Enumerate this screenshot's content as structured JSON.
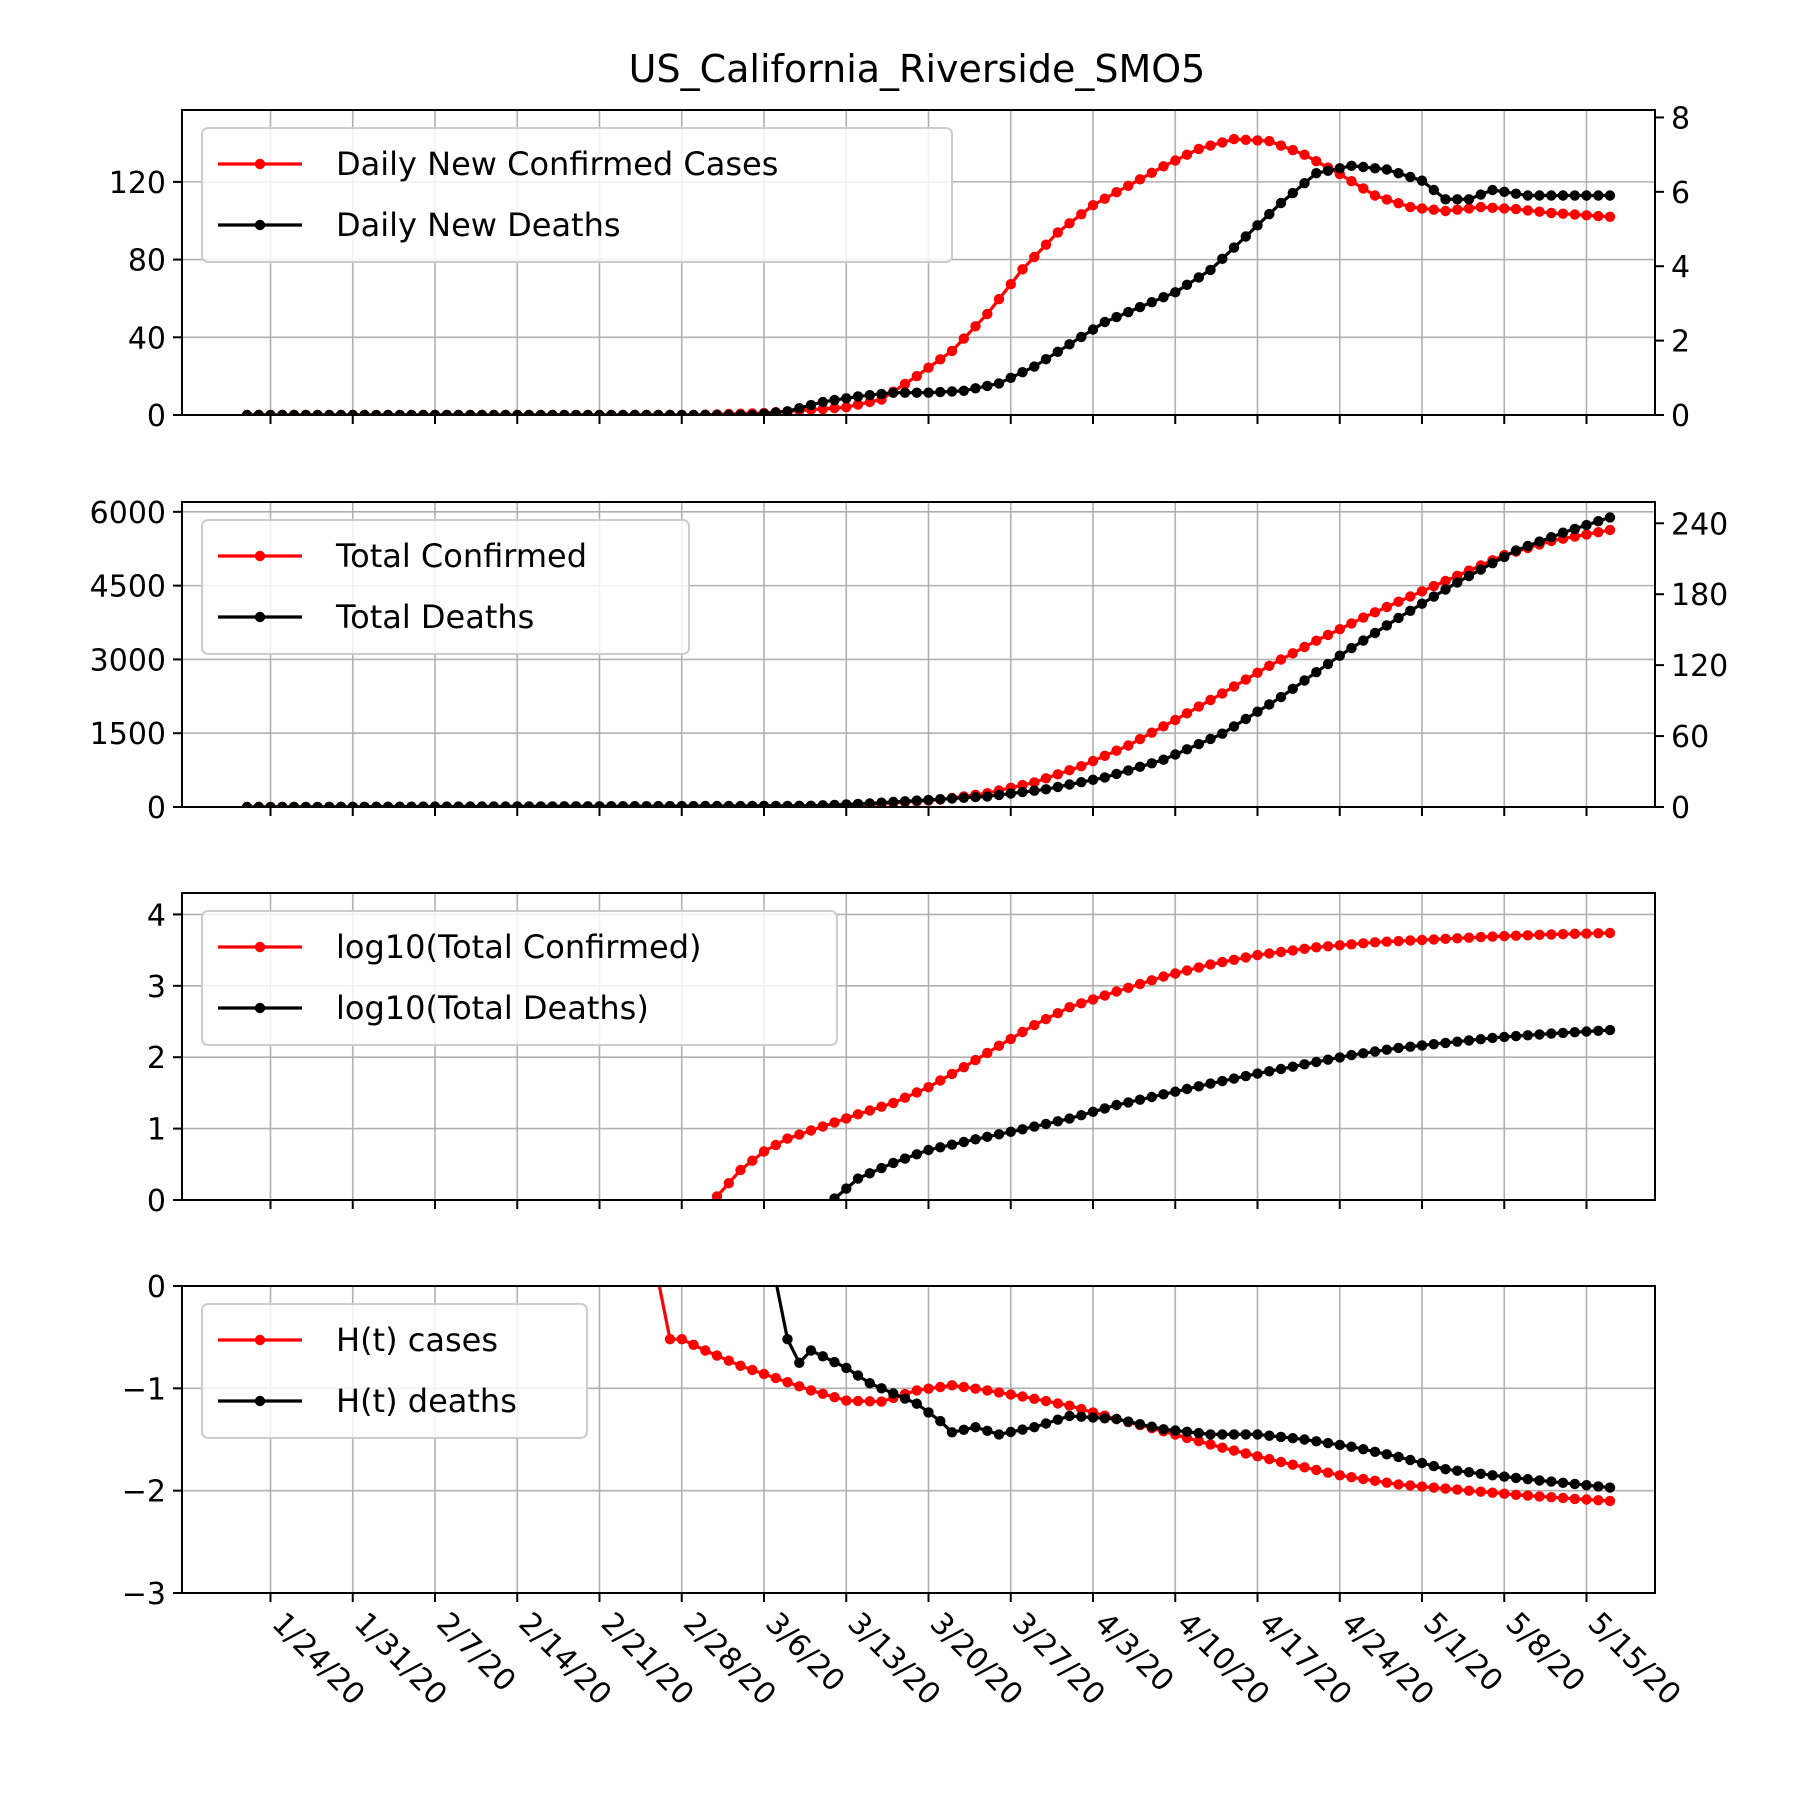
{
  "title": "US_California_Riverside_SMO5",
  "colors": {
    "cases": "#ff0000",
    "deaths": "#000000"
  },
  "chart_data": {
    "type": "line",
    "x_tick_labels": [
      "1/24/20",
      "1/31/20",
      "2/7/20",
      "2/14/20",
      "2/21/20",
      "2/28/20",
      "3/6/20",
      "3/13/20",
      "3/20/20",
      "3/27/20",
      "4/3/20",
      "4/10/20",
      "4/17/20",
      "4/24/20",
      "5/1/20",
      "5/8/20",
      "5/15/20"
    ],
    "date_range": [
      "1/22/20",
      "5/17/20"
    ],
    "grid": true,
    "legend_placement": "upper-left",
    "panels": [
      {
        "name": "daily",
        "ylim_left": [
          0,
          157
        ],
        "ylim_right": [
          0,
          8.2
        ],
        "yticks_left": [
          0,
          40,
          80,
          120
        ],
        "yticks_right": [
          0,
          2,
          4,
          6,
          8
        ],
        "series": [
          {
            "name": "Daily New Confirmed Cases",
            "color": "#ff0000",
            "axis": "left",
            "points": [
              [
                "1/22/20",
                0
              ],
              [
                "2/29/20",
                0
              ],
              [
                "3/6/20",
                1
              ],
              [
                "3/13/20",
                4
              ],
              [
                "3/16/20",
                8
              ],
              [
                "3/19/20",
                20
              ],
              [
                "3/22/20",
                33
              ],
              [
                "3/25/20",
                52
              ],
              [
                "3/28/20",
                75
              ],
              [
                "3/31/20",
                94
              ],
              [
                "4/3/20",
                108
              ],
              [
                "4/6/20",
                118
              ],
              [
                "4/9/20",
                128
              ],
              [
                "4/12/20",
                137
              ],
              [
                "4/15/20",
                142
              ],
              [
                "4/18/20",
                141
              ],
              [
                "4/21/20",
                134
              ],
              [
                "4/24/20",
                124
              ],
              [
                "4/27/20",
                113
              ],
              [
                "4/30/20",
                107
              ],
              [
                "5/3/20",
                105
              ],
              [
                "5/6/20",
                107
              ],
              [
                "5/9/20",
                106
              ],
              [
                "5/12/20",
                104
              ],
              [
                "5/17/20",
                102
              ]
            ]
          },
          {
            "name": "Daily New Deaths",
            "color": "#000000",
            "axis": "right",
            "points": [
              [
                "1/22/20",
                0
              ],
              [
                "3/5/20",
                0
              ],
              [
                "3/8/20",
                0.1
              ],
              [
                "3/11/20",
                0.35
              ],
              [
                "3/14/20",
                0.5
              ],
              [
                "3/17/20",
                0.6
              ],
              [
                "3/20/20",
                0.6
              ],
              [
                "3/23/20",
                0.65
              ],
              [
                "3/26/20",
                0.85
              ],
              [
                "3/29/20",
                1.3
              ],
              [
                "4/1/20",
                1.9
              ],
              [
                "4/4/20",
                2.5
              ],
              [
                "4/7/20",
                2.9
              ],
              [
                "4/10/20",
                3.3
              ],
              [
                "4/13/20",
                3.9
              ],
              [
                "4/16/20",
                4.8
              ],
              [
                "4/19/20",
                5.7
              ],
              [
                "4/22/20",
                6.5
              ],
              [
                "4/25/20",
                6.7
              ],
              [
                "4/28/20",
                6.6
              ],
              [
                "5/1/20",
                6.3
              ],
              [
                "5/3/20",
                5.8
              ],
              [
                "5/5/20",
                5.8
              ],
              [
                "5/7/20",
                6.05
              ],
              [
                "5/10/20",
                5.9
              ],
              [
                "5/17/20",
                5.9
              ]
            ]
          }
        ]
      },
      {
        "name": "total",
        "ylim_left": [
          0,
          6200
        ],
        "ylim_right": [
          0,
          258
        ],
        "yticks_left": [
          0,
          1500,
          3000,
          4500,
          6000
        ],
        "yticks_right": [
          0,
          60,
          120,
          180,
          240
        ],
        "series": [
          {
            "name": "Total Confirmed",
            "color": "#ff0000",
            "axis": "left",
            "points": [
              [
                "1/22/20",
                0
              ],
              [
                "3/1/20",
                1
              ],
              [
                "3/8/20",
                12
              ],
              [
                "3/15/20",
                50
              ],
              [
                "3/21/20",
                150
              ],
              [
                "3/25/20",
                280
              ],
              [
                "3/29/20",
                500
              ],
              [
                "4/2/20",
                830
              ],
              [
                "4/6/20",
                1250
              ],
              [
                "4/10/20",
                1770
              ],
              [
                "4/14/20",
                2310
              ],
              [
                "4/18/20",
                2870
              ],
              [
                "4/22/20",
                3380
              ],
              [
                "4/26/20",
                3850
              ],
              [
                "4/30/20",
                4280
              ],
              [
                "5/4/20",
                4700
              ],
              [
                "5/8/20",
                5120
              ],
              [
                "5/12/20",
                5410
              ],
              [
                "5/17/20",
                5630
              ]
            ]
          },
          {
            "name": "Total Deaths",
            "color": "#000000",
            "axis": "right",
            "points": [
              [
                "1/22/20",
                0
              ],
              [
                "3/10/20",
                1
              ],
              [
                "3/15/20",
                3
              ],
              [
                "3/20/20",
                6
              ],
              [
                "3/25/20",
                9
              ],
              [
                "3/30/20",
                15
              ],
              [
                "4/4/20",
                25
              ],
              [
                "4/9/20",
                40
              ],
              [
                "4/14/20",
                62
              ],
              [
                "4/19/20",
                93
              ],
              [
                "4/24/20",
                128
              ],
              [
                "4/29/20",
                160
              ],
              [
                "5/4/20",
                190
              ],
              [
                "5/9/20",
                217
              ],
              [
                "5/13/20",
                232
              ],
              [
                "5/17/20",
                245
              ]
            ]
          }
        ]
      },
      {
        "name": "log",
        "ylim_left": [
          0,
          4.3
        ],
        "yticks_left": [
          0,
          1,
          2,
          3,
          4
        ],
        "series": [
          {
            "name": "log10(Total Confirmed)",
            "color": "#ff0000",
            "axis": "left",
            "points": [
              [
                "3/2/20",
                0.05
              ],
              [
                "3/4/20",
                0.42
              ],
              [
                "3/6/20",
                0.68
              ],
              [
                "3/8/20",
                0.86
              ],
              [
                "3/11/20",
                1.03
              ],
              [
                "3/14/20",
                1.2
              ],
              [
                "3/17/20",
                1.36
              ],
              [
                "3/20/20",
                1.58
              ],
              [
                "3/23/20",
                1.86
              ],
              [
                "3/26/20",
                2.16
              ],
              [
                "3/29/20",
                2.45
              ],
              [
                "4/1/20",
                2.7
              ],
              [
                "4/5/20",
                2.92
              ],
              [
                "4/9/20",
                3.13
              ],
              [
                "4/13/20",
                3.3
              ],
              [
                "4/17/20",
                3.43
              ],
              [
                "4/22/20",
                3.54
              ],
              [
                "4/27/20",
                3.61
              ],
              [
                "5/2/20",
                3.65
              ],
              [
                "5/7/20",
                3.69
              ],
              [
                "5/12/20",
                3.72
              ],
              [
                "5/17/20",
                3.74
              ]
            ]
          },
          {
            "name": "log10(Total Deaths)",
            "color": "#000000",
            "axis": "left",
            "points": [
              [
                "3/12/20",
                0.02
              ],
              [
                "3/14/20",
                0.3
              ],
              [
                "3/17/20",
                0.52
              ],
              [
                "3/20/20",
                0.7
              ],
              [
                "3/24/20",
                0.85
              ],
              [
                "3/28/20",
                0.99
              ],
              [
                "4/1/20",
                1.14
              ],
              [
                "4/5/20",
                1.33
              ],
              [
                "4/9/20",
                1.48
              ],
              [
                "4/13/20",
                1.63
              ],
              [
                "4/17/20",
                1.77
              ],
              [
                "4/21/20",
                1.9
              ],
              [
                "4/25/20",
                2.03
              ],
              [
                "4/29/20",
                2.13
              ],
              [
                "5/3/20",
                2.2
              ],
              [
                "5/7/20",
                2.27
              ],
              [
                "5/11/20",
                2.32
              ],
              [
                "5/17/20",
                2.38
              ]
            ]
          }
        ]
      },
      {
        "name": "hurst",
        "ylim_left": [
          -3,
          0
        ],
        "yticks_left": [
          -3,
          -2,
          -1,
          0
        ],
        "ytick_labels": [
          "−3",
          "−2",
          "−1",
          "0"
        ],
        "series": [
          {
            "name": "H(t) cases",
            "color": "#ff0000",
            "axis": "left",
            "points": [
              [
                "2/26/20",
                0.05
              ],
              [
                "2/27/20",
                -0.52
              ],
              [
                "2/28/20",
                -0.52
              ],
              [
                "3/1/20",
                -0.63
              ],
              [
                "3/4/20",
                -0.78
              ],
              [
                "3/7/20",
                -0.9
              ],
              [
                "3/10/20",
                -1.02
              ],
              [
                "3/13/20",
                -1.12
              ],
              [
                "3/16/20",
                -1.13
              ],
              [
                "3/19/20",
                -1.02
              ],
              [
                "3/22/20",
                -0.97
              ],
              [
                "3/25/20",
                -1.02
              ],
              [
                "3/28/20",
                -1.08
              ],
              [
                "4/1/20",
                -1.17
              ],
              [
                "4/5/20",
                -1.3
              ],
              [
                "4/9/20",
                -1.42
              ],
              [
                "4/14/20",
                -1.58
              ],
              [
                "4/19/20",
                -1.72
              ],
              [
                "4/24/20",
                -1.85
              ],
              [
                "4/29/20",
                -1.94
              ],
              [
                "5/4/20",
                -1.99
              ],
              [
                "5/9/20",
                -2.04
              ],
              [
                "5/14/20",
                -2.08
              ],
              [
                "5/17/20",
                -2.1
              ]
            ]
          },
          {
            "name": "H(t) deaths",
            "color": "#000000",
            "axis": "left",
            "points": [
              [
                "3/7/20",
                0.05
              ],
              [
                "3/8/20",
                -0.52
              ],
              [
                "3/9/20",
                -0.75
              ],
              [
                "3/10/20",
                -0.63
              ],
              [
                "3/13/20",
                -0.8
              ],
              [
                "3/15/20",
                -0.95
              ],
              [
                "3/19/20",
                -1.15
              ],
              [
                "3/21/20",
                -1.32
              ],
              [
                "3/22/20",
                -1.43
              ],
              [
                "3/24/20",
                -1.38
              ],
              [
                "3/26/20",
                -1.45
              ],
              [
                "3/29/20",
                -1.38
              ],
              [
                "4/1/20",
                -1.27
              ],
              [
                "4/5/20",
                -1.3
              ],
              [
                "4/9/20",
                -1.4
              ],
              [
                "4/13/20",
                -1.45
              ],
              [
                "4/17/20",
                -1.45
              ],
              [
                "4/21/20",
                -1.5
              ],
              [
                "4/25/20",
                -1.57
              ],
              [
                "4/29/20",
                -1.67
              ],
              [
                "5/3/20",
                -1.79
              ],
              [
                "5/7/20",
                -1.85
              ],
              [
                "5/11/20",
                -1.9
              ],
              [
                "5/17/20",
                -1.97
              ]
            ]
          }
        ]
      }
    ]
  }
}
